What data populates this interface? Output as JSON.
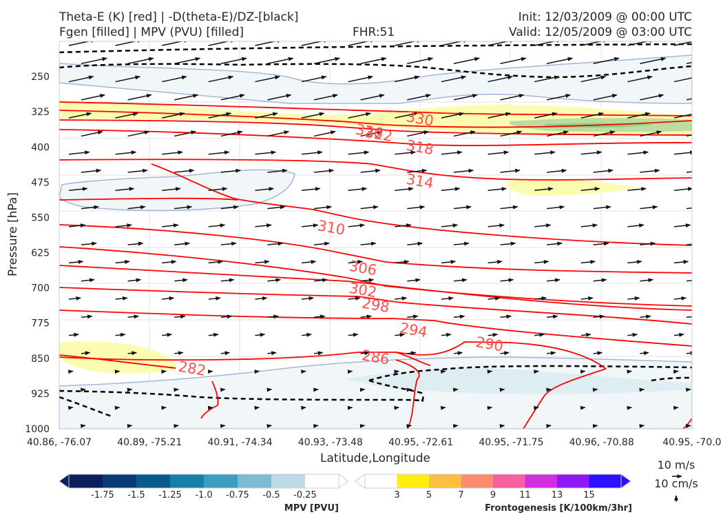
{
  "header": {
    "title_line1": "Theta-E (K) [red] | -D(theta-E)/DZ-[black]",
    "title_line2": "Fgen [filled] | MPV (PVU) [filled]",
    "fhr": "FHR:51",
    "init": "Init: 12/03/2009 @ 00:00 UTC",
    "valid": "Valid: 12/05/2009 @ 03:00 UTC"
  },
  "chart_data": {
    "type": "cross-section",
    "xlabel": "Latitude,Longitude",
    "ylabel": "Pressure [hPa]",
    "x_ticks": [
      "40.86, -76.07",
      "40.89, -75.21",
      "40.91, -74.34",
      "40.93, -73.48",
      "40.95, -72.61",
      "40.95, -71.75",
      "40.96, -70.88",
      "40.95, -70.0"
    ],
    "y_ticks": [
      250,
      325,
      400,
      475,
      550,
      625,
      700,
      775,
      850,
      925,
      1000
    ],
    "ylim": [
      1000,
      175
    ],
    "y_scale": "linear, inverted",
    "theta_e_contours": {
      "color": "#ff0000",
      "labels": [
        {
          "value": "330",
          "p": 340,
          "x_frac": 0.57
        },
        {
          "value": "326",
          "p": 367,
          "x_frac": 0.49
        },
        {
          "value": "322",
          "p": 373,
          "x_frac": 0.505
        },
        {
          "value": "318",
          "p": 401,
          "x_frac": 0.57
        },
        {
          "value": "314",
          "p": 473,
          "x_frac": 0.57
        },
        {
          "value": "310",
          "p": 572,
          "x_frac": 0.43
        },
        {
          "value": "306",
          "p": 658,
          "x_frac": 0.48
        },
        {
          "value": "302",
          "p": 705,
          "x_frac": 0.48
        },
        {
          "value": "298",
          "p": 737,
          "x_frac": 0.5
        },
        {
          "value": "294",
          "p": 790,
          "x_frac": 0.56
        },
        {
          "value": "290",
          "p": 820,
          "x_frac": 0.68
        },
        {
          "value": "286",
          "p": 848,
          "x_frac": 0.5
        },
        {
          "value": "282",
          "p": 872,
          "x_frac": 0.21
        }
      ]
    },
    "stability_contours": {
      "color": "#000000",
      "style": "dashed",
      "description": "-D(theta-E)/DZ"
    },
    "wind_vectors": {
      "color": "#000000"
    },
    "quiver_key": {
      "top_label": "10 m/s",
      "bottom_label": "10 cm/s"
    },
    "colorbars": [
      {
        "name": "MPV [PVU]",
        "ticks": [
          "-1.75",
          "-1.5",
          "-1.25",
          "-1.0",
          "-0.75",
          "-0.5",
          "-0.25"
        ],
        "colors": [
          "#0a1f5c",
          "#083a75",
          "#0a5a8a",
          "#1a7fa6",
          "#3f9dc1",
          "#7fbad3",
          "#bcdbe6",
          "#ffffff"
        ]
      },
      {
        "name": "Frontogenesis [K/100km/3hr]",
        "ticks": [
          "3",
          "5",
          "7",
          "9",
          "11",
          "13",
          "15"
        ],
        "colors": [
          "#ffffff",
          "#ffef0f",
          "#fbbf3f",
          "#fb8c70",
          "#f95f9f",
          "#cf2fdf",
          "#8f18f7",
          "#2f0fff"
        ]
      }
    ]
  }
}
